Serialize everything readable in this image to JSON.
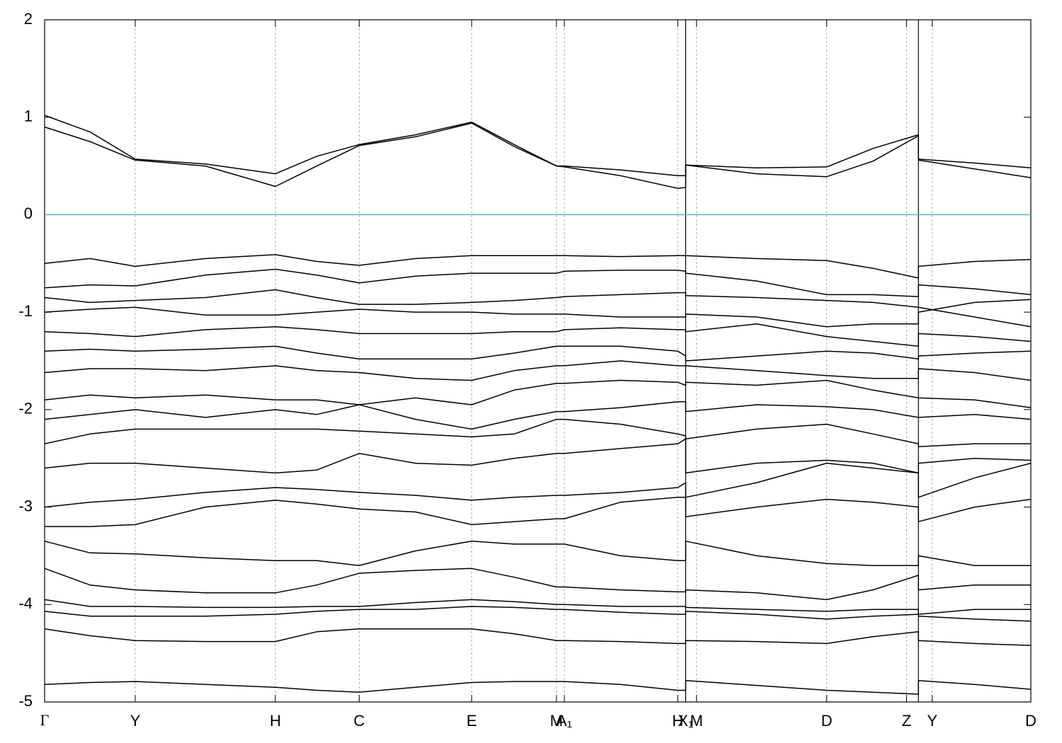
{
  "chart_data": {
    "type": "line",
    "color": "#000000",
    "fermi_level": 0,
    "fermi_color": "#5ab4c8",
    "xlim": [
      0,
      100
    ],
    "xticks": [
      {
        "value": 0,
        "label": "Γ"
      },
      {
        "value": 9.19,
        "label": "Y"
      },
      {
        "value": 23.4,
        "label": "H"
      },
      {
        "value": 31.9,
        "label": "C"
      },
      {
        "value": 43.3,
        "label": "E"
      },
      {
        "value": 51.9,
        "label": "M"
      },
      {
        "value": 52.7,
        "label": "A₁"
      },
      {
        "value": 64.2,
        "label": "H"
      },
      {
        "value": 65.0,
        "label": "X₁"
      },
      {
        "value": 66.1,
        "label": "M"
      },
      {
        "value": 79.3,
        "label": "D"
      },
      {
        "value": 87.4,
        "label": "Z"
      },
      {
        "value": 90.0,
        "label": "Y"
      },
      {
        "value": 100,
        "label": "D"
      }
    ],
    "breaks": [
      65.0,
      88.6
    ],
    "ylim": [
      -5,
      2
    ],
    "yticks": [
      -5,
      -4,
      -3,
      -2,
      -1,
      0,
      1,
      2
    ],
    "grid": true,
    "x": [
      0,
      4.6,
      9.19,
      16.3,
      23.4,
      27.6,
      31.9,
      37.6,
      43.3,
      47.6,
      51.9,
      52.7,
      58.4,
      64.2,
      65.0,
      65.0,
      72.2,
      79.3,
      84,
      88.6,
      88.6,
      94.3,
      100
    ],
    "series": [
      {
        "values": [
          1.02,
          0.85,
          0.57,
          0.52,
          0.42,
          0.6,
          0.72,
          0.82,
          0.95,
          0.72,
          0.5,
          0.5,
          0.46,
          0.4,
          0.4,
          0.51,
          0.48,
          0.49,
          0.68,
          0.82,
          0.57,
          0.53,
          0.48
        ]
      },
      {
        "values": [
          0.9,
          0.75,
          0.56,
          0.5,
          0.29,
          0.5,
          0.71,
          0.8,
          0.94,
          0.7,
          0.5,
          0.49,
          0.4,
          0.27,
          0.28,
          0.51,
          0.42,
          0.39,
          0.55,
          0.81,
          0.56,
          0.47,
          0.38
        ]
      },
      {
        "values": [
          -0.5,
          -0.45,
          -0.53,
          -0.45,
          -0.41,
          -0.48,
          -0.52,
          -0.45,
          -0.42,
          -0.42,
          -0.42,
          -0.42,
          -0.43,
          -0.42,
          -0.42,
          -0.42,
          -0.45,
          -0.47,
          -0.55,
          -0.65,
          -0.53,
          -0.48,
          -0.46
        ]
      },
      {
        "values": [
          -0.75,
          -0.72,
          -0.73,
          -0.62,
          -0.56,
          -0.62,
          -0.7,
          -0.63,
          -0.6,
          -0.6,
          -0.6,
          -0.58,
          -0.57,
          -0.57,
          -0.58,
          -0.6,
          -0.68,
          -0.82,
          -0.82,
          -0.84,
          -0.72,
          -0.76,
          -0.82
        ]
      },
      {
        "values": [
          -0.85,
          -0.9,
          -0.88,
          -0.85,
          -0.77,
          -0.85,
          -0.92,
          -0.92,
          -0.9,
          -0.88,
          -0.85,
          -0.84,
          -0.82,
          -0.8,
          -0.8,
          -0.83,
          -0.85,
          -0.88,
          -0.9,
          -0.95,
          -0.95,
          -1.05,
          -1.15
        ]
      },
      {
        "values": [
          -1.0,
          -0.97,
          -0.95,
          -1.03,
          -1.03,
          -1.0,
          -0.97,
          -1.0,
          -1.0,
          -1.02,
          -1.02,
          -1.02,
          -1.05,
          -1.05,
          -1.05,
          -1.02,
          -1.05,
          -1.15,
          -1.12,
          -1.12,
          -1.0,
          -0.9,
          -0.87
        ]
      },
      {
        "values": [
          -1.2,
          -1.22,
          -1.25,
          -1.18,
          -1.15,
          -1.18,
          -1.22,
          -1.22,
          -1.22,
          -1.2,
          -1.2,
          -1.18,
          -1.16,
          -1.18,
          -1.18,
          -1.2,
          -1.12,
          -1.25,
          -1.3,
          -1.35,
          -1.22,
          -1.25,
          -1.3
        ]
      },
      {
        "values": [
          -1.4,
          -1.38,
          -1.4,
          -1.38,
          -1.35,
          -1.42,
          -1.48,
          -1.48,
          -1.48,
          -1.42,
          -1.35,
          -1.35,
          -1.35,
          -1.4,
          -1.45,
          -1.5,
          -1.45,
          -1.4,
          -1.42,
          -1.48,
          -1.45,
          -1.42,
          -1.4
        ]
      },
      {
        "values": [
          -1.62,
          -1.58,
          -1.58,
          -1.6,
          -1.55,
          -1.6,
          -1.62,
          -1.68,
          -1.7,
          -1.6,
          -1.55,
          -1.55,
          -1.5,
          -1.55,
          -1.55,
          -1.55,
          -1.6,
          -1.65,
          -1.68,
          -1.68,
          -1.58,
          -1.62,
          -1.7
        ]
      },
      {
        "values": [
          -1.9,
          -1.85,
          -1.88,
          -1.85,
          -1.9,
          -1.9,
          -1.95,
          -1.88,
          -1.95,
          -1.8,
          -1.73,
          -1.73,
          -1.7,
          -1.72,
          -1.75,
          -1.72,
          -1.75,
          -1.7,
          -1.8,
          -1.88,
          -1.88,
          -1.9,
          -1.98
        ]
      },
      {
        "values": [
          -2.1,
          -2.05,
          -2.0,
          -2.08,
          -2.0,
          -2.05,
          -1.95,
          -2.1,
          -2.2,
          -2.1,
          -2.02,
          -2.02,
          -1.98,
          -1.92,
          -1.92,
          -2.02,
          -1.95,
          -1.97,
          -2.0,
          -2.08,
          -2.08,
          -2.05,
          -2.1
        ]
      },
      {
        "values": [
          -2.35,
          -2.25,
          -2.2,
          -2.2,
          -2.2,
          -2.2,
          -2.22,
          -2.25,
          -2.28,
          -2.25,
          -2.1,
          -2.1,
          -2.15,
          -2.25,
          -2.27,
          -2.3,
          -2.2,
          -2.15,
          -2.25,
          -2.35,
          -2.38,
          -2.35,
          -2.35
        ]
      },
      {
        "values": [
          -2.6,
          -2.55,
          -2.55,
          -2.6,
          -2.65,
          -2.62,
          -2.45,
          -2.55,
          -2.57,
          -2.5,
          -2.45,
          -2.45,
          -2.4,
          -2.35,
          -2.3,
          -2.65,
          -2.55,
          -2.52,
          -2.55,
          -2.65,
          -2.55,
          -2.5,
          -2.52
        ]
      },
      {
        "values": [
          -3.0,
          -2.95,
          -2.92,
          -2.85,
          -2.8,
          -2.82,
          -2.85,
          -2.88,
          -2.93,
          -2.9,
          -2.88,
          -2.88,
          -2.85,
          -2.8,
          -2.75,
          -2.9,
          -2.75,
          -2.55,
          -2.6,
          -2.65,
          -2.9,
          -2.7,
          -2.55
        ]
      },
      {
        "values": [
          -3.2,
          -3.2,
          -3.18,
          -3.0,
          -2.93,
          -2.97,
          -3.02,
          -3.05,
          -3.18,
          -3.15,
          -3.12,
          -3.12,
          -2.95,
          -2.9,
          -2.9,
          -3.1,
          -3.0,
          -2.92,
          -2.95,
          -3.0,
          -3.15,
          -3.0,
          -2.92
        ]
      },
      {
        "values": [
          -3.35,
          -3.47,
          -3.48,
          -3.52,
          -3.55,
          -3.55,
          -3.6,
          -3.45,
          -3.35,
          -3.38,
          -3.38,
          -3.38,
          -3.5,
          -3.55,
          -3.55,
          -3.35,
          -3.5,
          -3.58,
          -3.6,
          -3.6,
          -3.5,
          -3.6,
          -3.6
        ]
      },
      {
        "values": [
          -3.63,
          -3.8,
          -3.85,
          -3.88,
          -3.88,
          -3.8,
          -3.68,
          -3.65,
          -3.63,
          -3.72,
          -3.82,
          -3.82,
          -3.85,
          -3.87,
          -3.87,
          -3.85,
          -3.88,
          -3.95,
          -3.85,
          -3.7,
          -3.85,
          -3.8,
          -3.8
        ]
      },
      {
        "values": [
          -3.95,
          -4.02,
          -4.02,
          -4.03,
          -4.03,
          -4.02,
          -4.02,
          -3.98,
          -3.95,
          -3.97,
          -4.0,
          -4.0,
          -4.02,
          -4.02,
          -4.02,
          -4.03,
          -4.05,
          -4.07,
          -4.05,
          -4.05,
          -4.1,
          -4.05,
          -4.05
        ]
      },
      {
        "values": [
          -4.07,
          -4.12,
          -4.12,
          -4.12,
          -4.1,
          -4.07,
          -4.05,
          -4.05,
          -4.02,
          -4.03,
          -4.05,
          -4.05,
          -4.08,
          -4.1,
          -4.1,
          -4.07,
          -4.1,
          -4.15,
          -4.12,
          -4.1,
          -4.12,
          -4.15,
          -4.17
        ]
      },
      {
        "values": [
          -4.25,
          -4.32,
          -4.37,
          -4.38,
          -4.38,
          -4.28,
          -4.25,
          -4.25,
          -4.25,
          -4.3,
          -4.37,
          -4.37,
          -4.38,
          -4.4,
          -4.4,
          -4.37,
          -4.38,
          -4.4,
          -4.33,
          -4.28,
          -4.37,
          -4.4,
          -4.42
        ]
      },
      {
        "values": [
          -4.82,
          -4.8,
          -4.79,
          -4.82,
          -4.85,
          -4.88,
          -4.9,
          -4.85,
          -4.8,
          -4.79,
          -4.79,
          -4.79,
          -4.82,
          -4.88,
          -4.88,
          -4.78,
          -4.83,
          -4.88,
          -4.9,
          -4.92,
          -4.78,
          -4.82,
          -4.87
        ]
      }
    ]
  }
}
